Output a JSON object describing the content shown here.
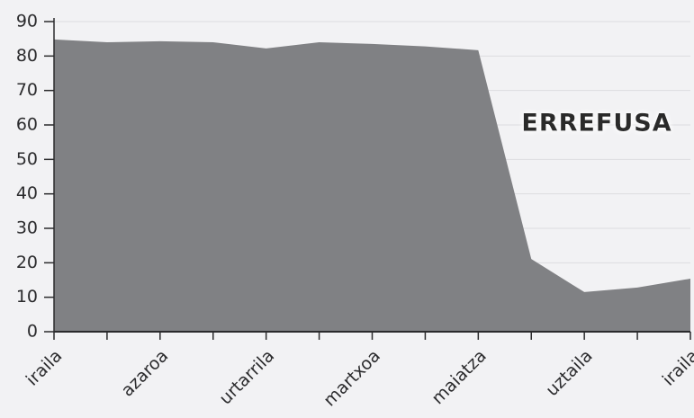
{
  "chart_data": {
    "type": "area",
    "categories": [
      "iraila",
      null,
      "azaroa",
      null,
      "urtarrila",
      null,
      "martxoa",
      null,
      "maiatza",
      null,
      "uztaila",
      null,
      "iraila"
    ],
    "values": [
      84.8,
      84.0,
      84.3,
      84.0,
      82.2,
      84.0,
      83.5,
      82.8,
      81.7,
      21.1,
      11.5,
      12.8,
      15.4
    ],
    "color": "#808184",
    "ylim": [
      0,
      90
    ],
    "yticks": [
      0,
      10,
      20,
      30,
      40,
      50,
      60,
      70,
      80,
      90
    ],
    "grid": true,
    "annotation": "ERREFUSA"
  }
}
